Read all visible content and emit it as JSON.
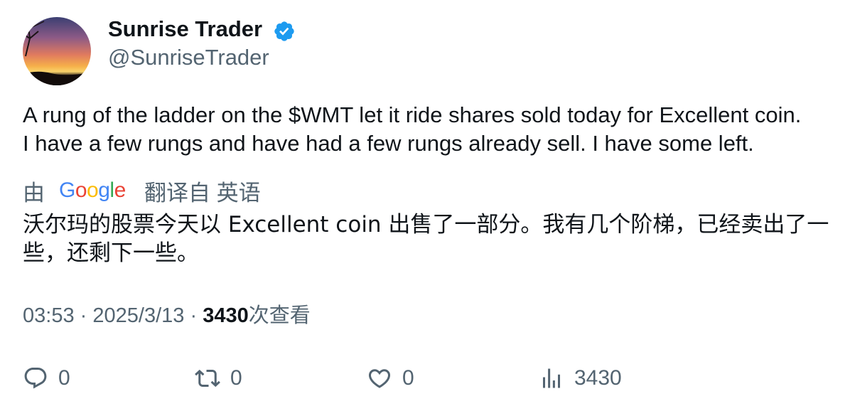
{
  "user": {
    "display_name": "Sunrise Trader",
    "handle": "@SunriseTrader",
    "verified": true
  },
  "tweet": {
    "text": "A rung of the ladder on the $WMT let it ride shares sold today for Excellent coin.\nI have a few rungs and have had a few rungs already sell.  I have some left."
  },
  "translation": {
    "prefix": "由",
    "provider": "Google",
    "suffix": "翻译自 英语",
    "text": "沃尔玛的股票今天以 Excellent coin 出售了一部分。我有几个阶梯，已经卖出了一些，还剩下一些。"
  },
  "meta": {
    "time": "03:53",
    "separator": "·",
    "date": "2025/3/13",
    "views_count": "3430",
    "views_label": "次查看"
  },
  "actions": {
    "replies": "0",
    "reposts": "0",
    "likes": "0",
    "views": "3430"
  },
  "colors": {
    "verified_blue": "#1d9bf0",
    "secondary_text": "#536471",
    "primary_text": "#0f1419"
  },
  "icons": [
    "verified-badge-icon",
    "reply-icon",
    "repost-icon",
    "like-icon",
    "views-icon"
  ]
}
